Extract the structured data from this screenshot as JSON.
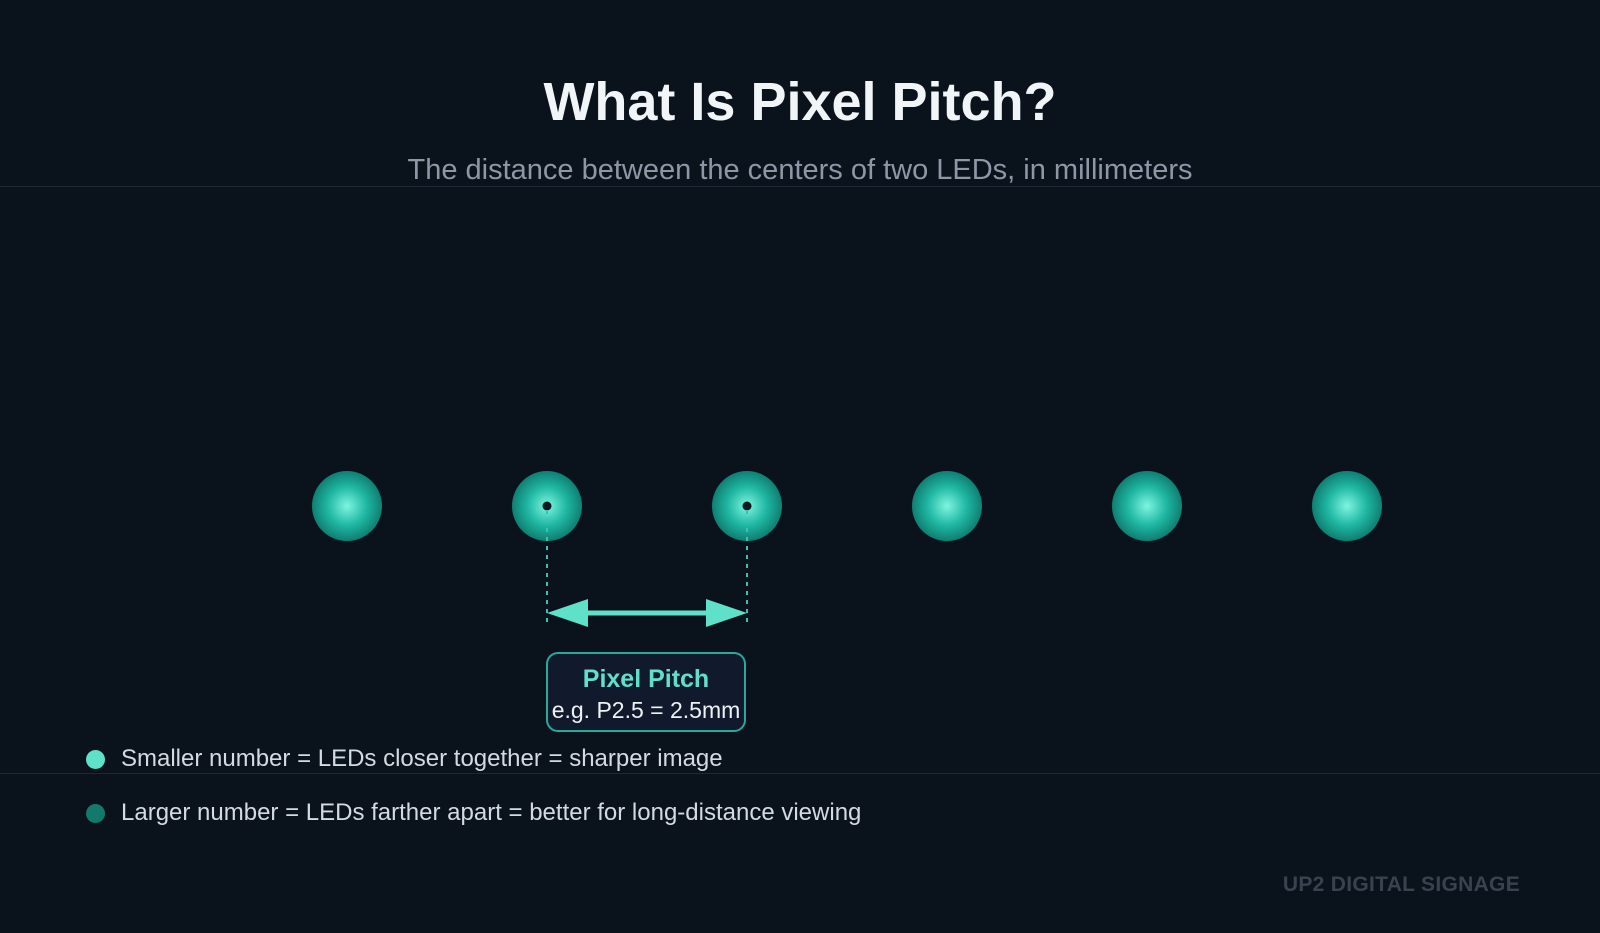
{
  "header": {
    "title": "What Is Pixel Pitch?",
    "subtitle": "The distance between the centers of two LEDs, in millimeters"
  },
  "diagram": {
    "led_count": 6,
    "led_color": "#1fb9a5",
    "led_highlight_color": "#6ff0db",
    "arrow_color": "#5fe0c8",
    "callout": {
      "title": "Pixel Pitch",
      "subtitle": "e.g. P2.5 = 2.5mm"
    }
  },
  "legend": {
    "items": [
      {
        "text": "Smaller number = LEDs closer together = sharper image",
        "color": "#5fe0c8"
      },
      {
        "text": "Larger number = LEDs farther apart = better for long-distance viewing",
        "color": "#127a6c"
      }
    ]
  },
  "footer": {
    "brand": "UP2 DIGITAL SIGNAGE"
  }
}
